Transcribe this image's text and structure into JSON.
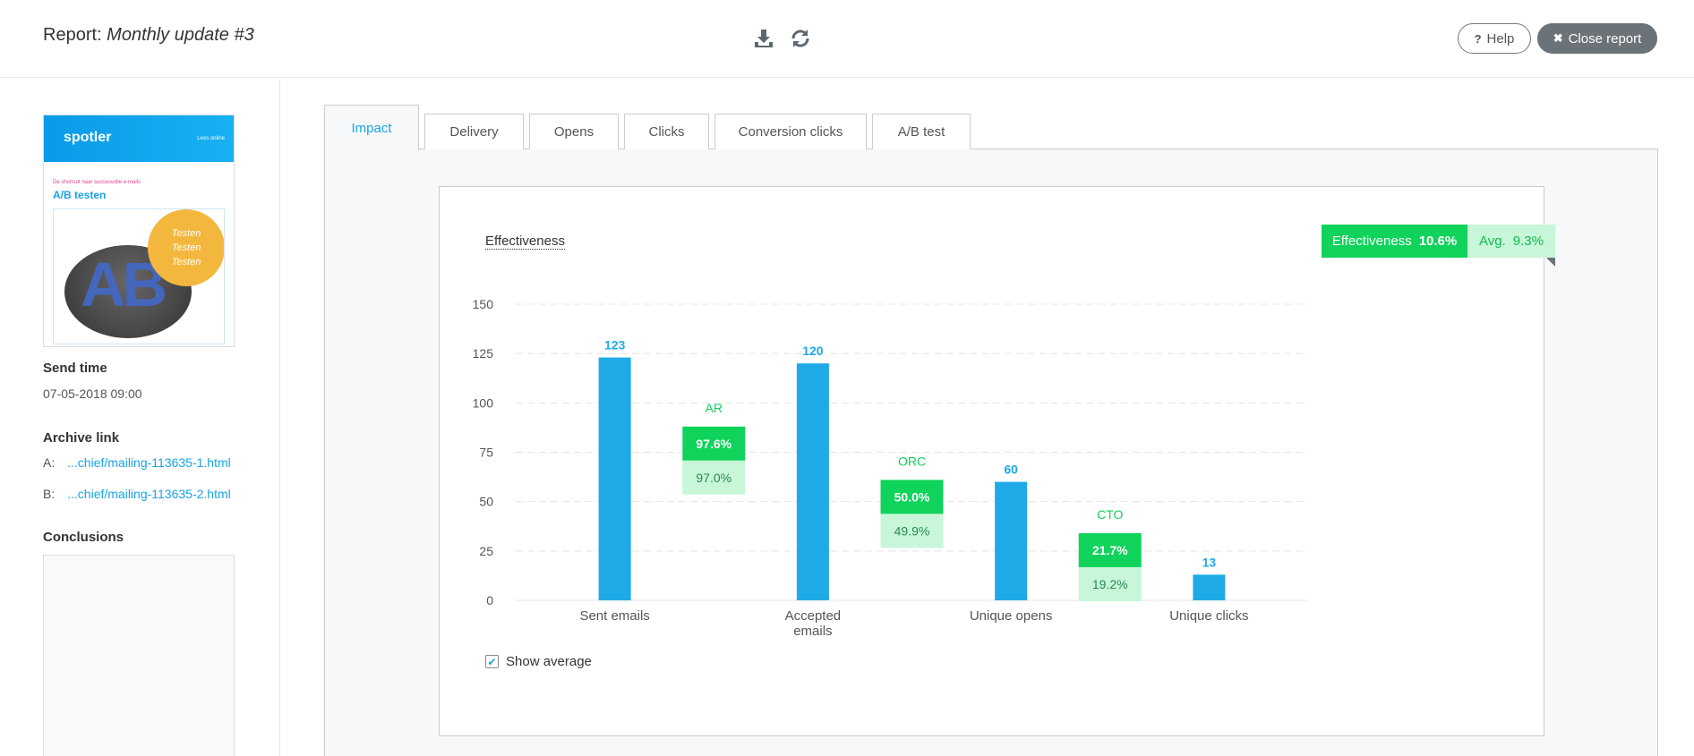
{
  "header": {
    "report_prefix": "Report:",
    "report_name": "Monthly update #3",
    "help_label": "Help",
    "help_glyph": "?",
    "close_label": "Close report",
    "close_glyph": "✖",
    "icons": [
      "download-icon",
      "refresh-icon"
    ]
  },
  "sidebar": {
    "thumbnail": {
      "logo": "spotler",
      "online": "Lees online",
      "subtitle": "De shortcut naar succesvolle e-mails",
      "heading": "A/B testen",
      "ab": "AB",
      "circle": [
        "Testen",
        "Testen",
        "Testen"
      ]
    },
    "send_time_label": "Send time",
    "send_time_value": "07-05-2018 09:00",
    "archive_label": "Archive link",
    "archive_links": [
      {
        "prefix": "A:",
        "text": "...chief/mailing-113635-1.html"
      },
      {
        "prefix": "B:",
        "text": "...chief/mailing-113635-2.html"
      }
    ],
    "conclusions_label": "Conclusions"
  },
  "tabs": [
    {
      "label": "Impact",
      "active": true
    },
    {
      "label": "Delivery",
      "active": false
    },
    {
      "label": "Opens",
      "active": false
    },
    {
      "label": "Clicks",
      "active": false
    },
    {
      "label": "Conversion clicks",
      "active": false
    },
    {
      "label": "A/B test",
      "active": false
    }
  ],
  "card": {
    "title": "Effectiveness",
    "badge_label": "Effectiveness",
    "badge_value": "10.6%",
    "avg_label": "Avg.",
    "avg_value": "9.3%",
    "show_average_label": "Show average",
    "show_average_checked": true
  },
  "chart_data": {
    "type": "bar",
    "ylim": [
      0,
      150
    ],
    "yticks": [
      0,
      25,
      50,
      75,
      100,
      125,
      150
    ],
    "grid": true,
    "categories": [
      "Sent emails",
      "Accepted emails",
      "Unique opens",
      "Unique clicks"
    ],
    "category_lines": [
      [
        "Sent emails"
      ],
      [
        "Accepted",
        "emails"
      ],
      [
        "Unique opens"
      ],
      [
        "Unique clicks"
      ]
    ],
    "values": [
      123,
      120,
      60,
      13
    ],
    "bar_color": "#1eaae7",
    "ratios": [
      {
        "label": "AR",
        "value": "97.6%",
        "average": "97.0%",
        "level": 88
      },
      {
        "label": "ORC",
        "value": "50.0%",
        "average": "49.9%",
        "level": 61
      },
      {
        "label": "CTO",
        "value": "21.7%",
        "average": "19.2%",
        "level": 34
      }
    ],
    "ratio_color": "#10d35b",
    "ratio_avg_color": "#c8f6d9"
  }
}
